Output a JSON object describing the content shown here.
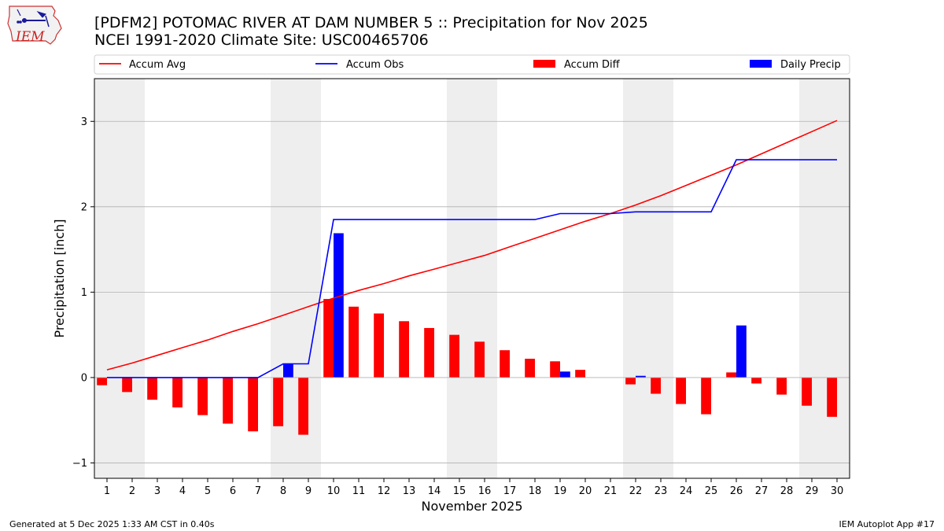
{
  "header": {
    "title_line1": "[PDFM2] POTOMAC RIVER AT DAM NUMBER 5 :: Precipitation for Nov 2025",
    "title_line2": "NCEI 1991-2020 Climate Site: USC00465706",
    "logo_text": "IEM"
  },
  "footer": {
    "generated": "Generated at 5 Dec 2025 1:33 AM CST in 0.40s",
    "app": "IEM Autoplot App #17"
  },
  "colors": {
    "avg": "#ff0000",
    "obs": "#0000ff",
    "diff": "#ff0000",
    "daily": "#0000ff",
    "weekend": "#eeeeee",
    "grid": "#b0b0b0"
  },
  "chart_data": {
    "type": "bar",
    "xlabel": "November 2025",
    "ylabel": "Precipitation [inch]",
    "xlim": [
      0.5,
      30.5
    ],
    "ylim": [
      -1.18,
      3.5
    ],
    "yticks": [
      -1,
      0,
      1,
      2,
      3
    ],
    "yticklabels": [
      "−1",
      "0",
      "1",
      "2",
      "3"
    ],
    "grid": "horizontal",
    "legend_position": "top",
    "weekend_spans": [
      [
        0.5,
        2.5
      ],
      [
        7.5,
        9.5
      ],
      [
        14.5,
        16.5
      ],
      [
        21.5,
        23.5
      ],
      [
        28.5,
        30.5
      ]
    ],
    "days": [
      1,
      2,
      3,
      4,
      5,
      6,
      7,
      8,
      9,
      10,
      11,
      12,
      13,
      14,
      15,
      16,
      17,
      18,
      19,
      20,
      21,
      22,
      23,
      24,
      25,
      26,
      27,
      28,
      29,
      30
    ],
    "series": [
      {
        "name": "Accum Avg",
        "kind": "line",
        "values": [
          0.09,
          0.17,
          0.26,
          0.35,
          0.44,
          0.54,
          0.63,
          0.73,
          0.83,
          0.93,
          1.02,
          1.1,
          1.19,
          1.27,
          1.35,
          1.43,
          1.53,
          1.63,
          1.73,
          1.83,
          1.92,
          2.02,
          2.13,
          2.25,
          2.37,
          2.49,
          2.62,
          2.75,
          2.88,
          3.01
        ]
      },
      {
        "name": "Accum Obs",
        "kind": "line",
        "values": [
          0.0,
          0.0,
          0.0,
          0.0,
          0.0,
          0.0,
          0.0,
          0.16,
          0.16,
          1.85,
          1.85,
          1.85,
          1.85,
          1.85,
          1.85,
          1.85,
          1.85,
          1.85,
          1.92,
          1.92,
          1.92,
          1.94,
          1.94,
          1.94,
          1.94,
          2.55,
          2.55,
          2.55,
          2.55,
          2.55
        ]
      },
      {
        "name": "Accum Diff",
        "kind": "bar",
        "values": [
          -0.09,
          -0.17,
          -0.26,
          -0.35,
          -0.44,
          -0.54,
          -0.63,
          -0.57,
          -0.67,
          0.92,
          0.83,
          0.75,
          0.66,
          0.58,
          0.5,
          0.42,
          0.32,
          0.22,
          0.19,
          0.09,
          0.0,
          -0.08,
          -0.19,
          -0.31,
          -0.43,
          0.06,
          -0.07,
          -0.2,
          -0.33,
          -0.46
        ]
      },
      {
        "name": "Daily Precip",
        "kind": "bar",
        "values": [
          0,
          0,
          0,
          0,
          0,
          0,
          0,
          0.16,
          0,
          1.69,
          0,
          0,
          0,
          0,
          0,
          0,
          0,
          0,
          0.07,
          0,
          0,
          0.02,
          0,
          0,
          0,
          0.61,
          0,
          0,
          0,
          0
        ]
      }
    ]
  }
}
